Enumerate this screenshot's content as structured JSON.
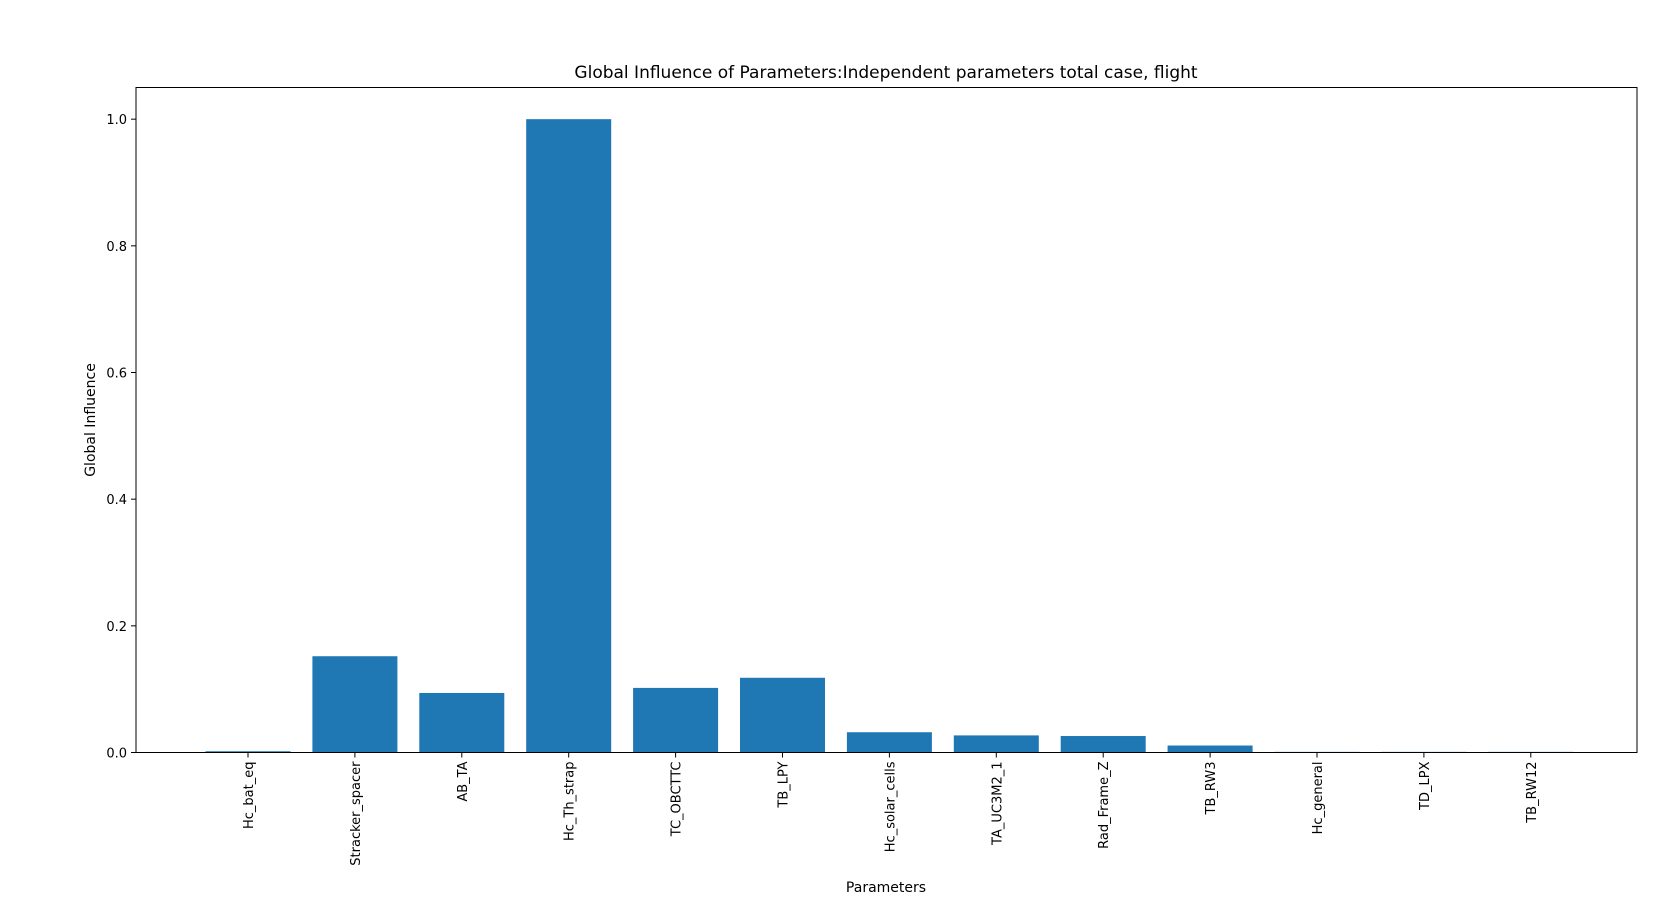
{
  "chart_data": {
    "type": "bar",
    "title": "Global Influence of Parameters:Independent parameters total case, flight",
    "xlabel": "Parameters",
    "ylabel": "Global Influence",
    "categories": [
      "Hc_bat_eq",
      "Stracker_spacer",
      "AB_TA",
      "Hc_Th_strap",
      "TC_OBCTTC",
      "TB_LPY",
      "Hc_solar_cells",
      "TA_UC3M2_1",
      "Rad_Frame_Z",
      "TB_RW3",
      "Hc_general",
      "TD_LPX",
      "TB_RW12"
    ],
    "values": [
      0.002,
      0.152,
      0.094,
      1.0,
      0.102,
      0.118,
      0.032,
      0.027,
      0.026,
      0.011,
      0.001,
      0.001,
      0.001
    ],
    "ylim": [
      0,
      1.05
    ],
    "yticks": [
      0.0,
      0.2,
      0.4,
      0.6,
      0.8,
      1.0
    ],
    "ytick_labels": [
      "0.0",
      "0.2",
      "0.4",
      "0.6",
      "0.8",
      "1.0"
    ],
    "bar_color": "#1f77b4",
    "grid": false,
    "legend": false
  }
}
